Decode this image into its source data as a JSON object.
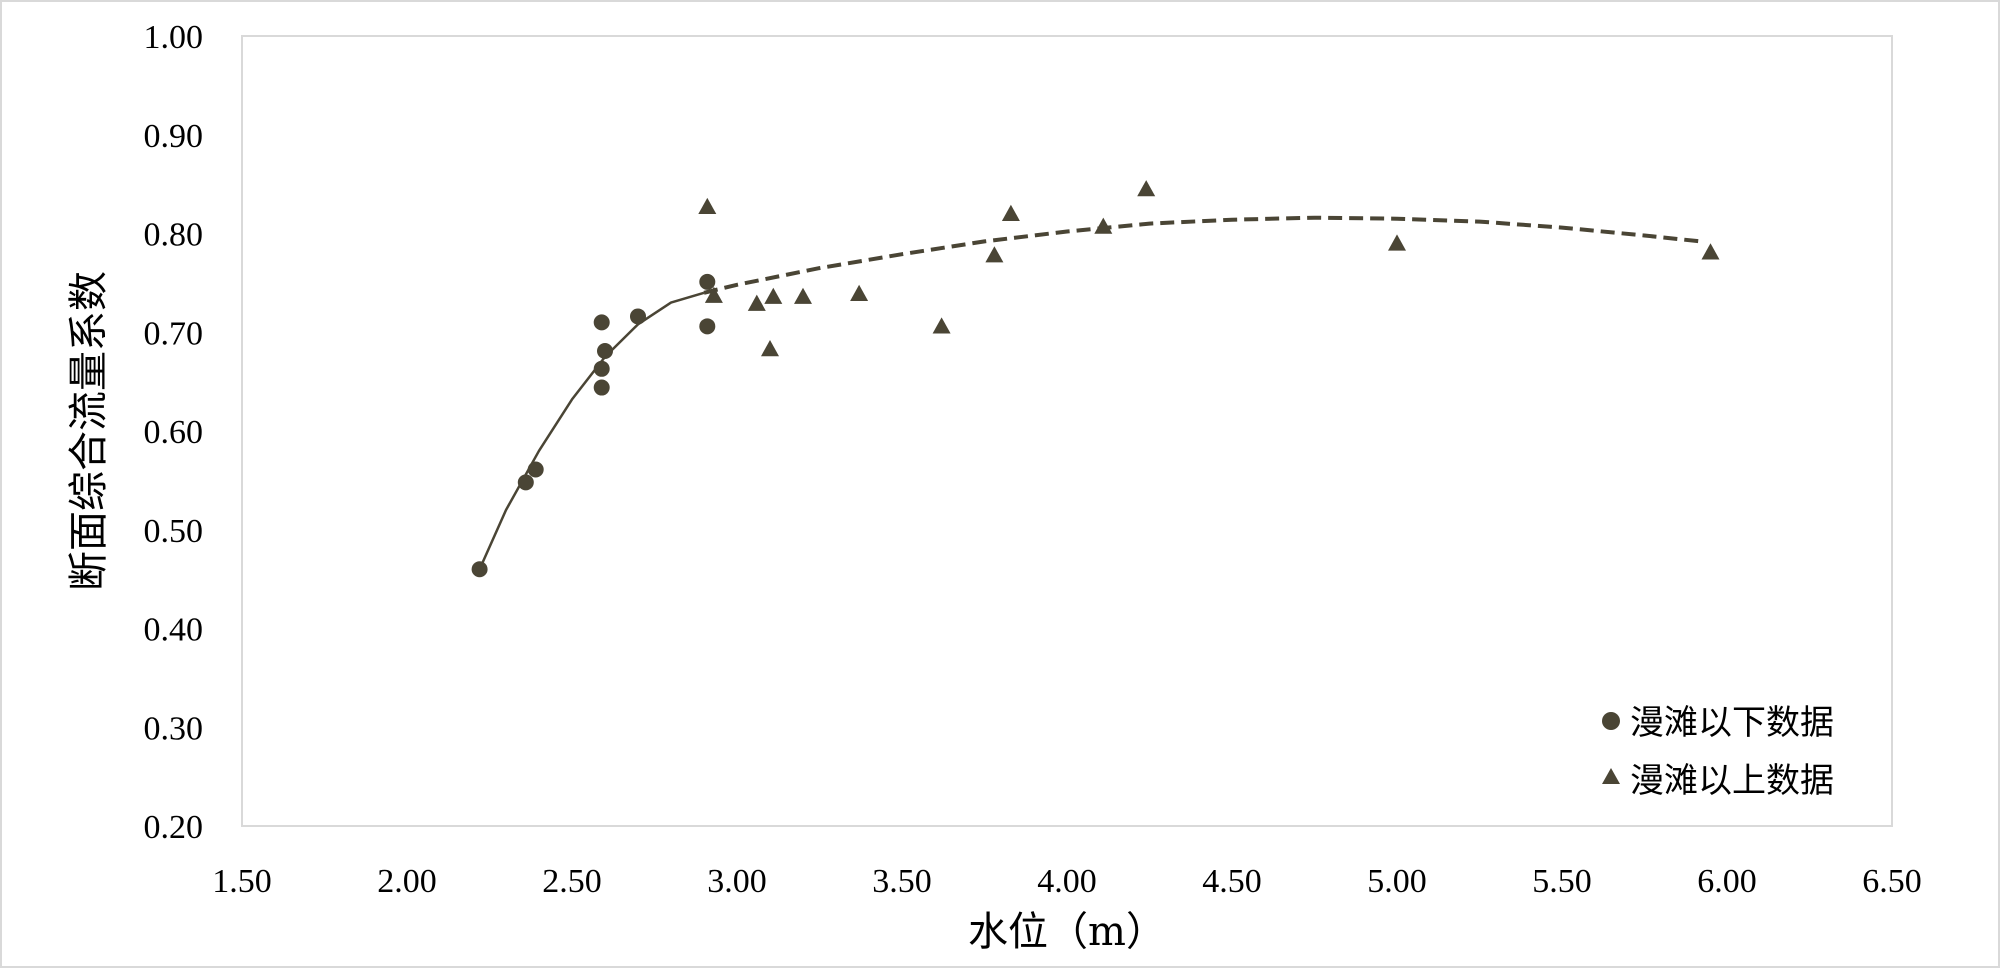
{
  "chart_data": {
    "type": "scatter",
    "title": "",
    "xlabel": "水位（m）",
    "ylabel": "断面综合流量系数",
    "xlim": [
      1.5,
      6.5
    ],
    "ylim": [
      0.2,
      1.0
    ],
    "x_ticks": [
      "1.50",
      "2.00",
      "2.50",
      "3.00",
      "3.50",
      "4.00",
      "4.50",
      "5.00",
      "5.50",
      "6.00",
      "6.50"
    ],
    "y_ticks": [
      "0.20",
      "0.30",
      "0.40",
      "0.50",
      "0.60",
      "0.70",
      "0.80",
      "0.90",
      "1.00"
    ],
    "x_tick_values": [
      1.5,
      2.0,
      2.5,
      3.0,
      3.5,
      4.0,
      4.5,
      5.0,
      5.5,
      6.0,
      6.5
    ],
    "y_tick_values": [
      0.2,
      0.3,
      0.4,
      0.5,
      0.6,
      0.7,
      0.8,
      0.9,
      1.0
    ],
    "grid": false,
    "legend_position": "bottom-right",
    "marker_color": "#4a4535",
    "series": [
      {
        "name": "漫滩以下数据",
        "marker": "circle",
        "points": [
          [
            2.22,
            0.46
          ],
          [
            2.36,
            0.548
          ],
          [
            2.39,
            0.561
          ],
          [
            2.59,
            0.644
          ],
          [
            2.59,
            0.663
          ],
          [
            2.59,
            0.71
          ],
          [
            2.6,
            0.681
          ],
          [
            2.7,
            0.716
          ],
          [
            2.91,
            0.751
          ],
          [
            2.91,
            0.706
          ]
        ]
      },
      {
        "name": "漫滩以上数据",
        "marker": "triangle",
        "points": [
          [
            2.91,
            0.827
          ],
          [
            2.93,
            0.737
          ],
          [
            3.06,
            0.729
          ],
          [
            3.1,
            0.683
          ],
          [
            3.11,
            0.736
          ],
          [
            3.2,
            0.736
          ],
          [
            3.37,
            0.739
          ],
          [
            3.62,
            0.706
          ],
          [
            3.78,
            0.778
          ],
          [
            3.83,
            0.82
          ],
          [
            4.11,
            0.807
          ],
          [
            4.24,
            0.845
          ],
          [
            5.0,
            0.79
          ],
          [
            5.95,
            0.781
          ]
        ]
      }
    ],
    "trendlines": [
      {
        "style": "solid",
        "points": [
          [
            2.22,
            0.46
          ],
          [
            2.3,
            0.52
          ],
          [
            2.4,
            0.58
          ],
          [
            2.5,
            0.632
          ],
          [
            2.6,
            0.675
          ],
          [
            2.7,
            0.708
          ],
          [
            2.8,
            0.73
          ],
          [
            2.9,
            0.74
          ]
        ]
      },
      {
        "style": "dashed",
        "points": [
          [
            2.9,
            0.74
          ],
          [
            3.0,
            0.748
          ],
          [
            3.25,
            0.765
          ],
          [
            3.5,
            0.779
          ],
          [
            3.75,
            0.792
          ],
          [
            4.0,
            0.802
          ],
          [
            4.25,
            0.81
          ],
          [
            4.5,
            0.814
          ],
          [
            4.75,
            0.816
          ],
          [
            5.0,
            0.815
          ],
          [
            5.25,
            0.812
          ],
          [
            5.5,
            0.806
          ],
          [
            5.75,
            0.798
          ],
          [
            5.92,
            0.792
          ]
        ]
      }
    ]
  }
}
